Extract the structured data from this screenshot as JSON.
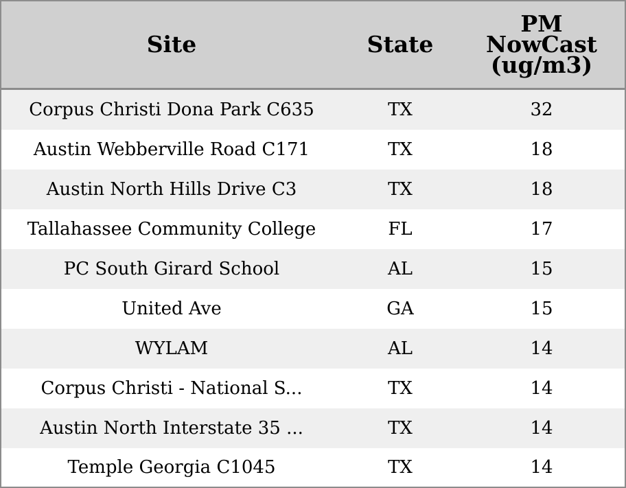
{
  "chart_data": {
    "type": "table",
    "columns": [
      "Site",
      "State",
      "PM NowCast (ug/m3)"
    ],
    "header_lines": {
      "site": [
        "Site"
      ],
      "state": [
        "State"
      ],
      "pm": [
        "PM",
        "NowCast",
        "(ug/m3)"
      ]
    },
    "rows": [
      {
        "site": "Corpus Christi Dona Park C635",
        "state": "TX",
        "pm": 32
      },
      {
        "site": "Austin Webberville Road C171",
        "state": "TX",
        "pm": 18
      },
      {
        "site": "Austin North Hills Drive C3",
        "state": "TX",
        "pm": 18
      },
      {
        "site": "Tallahassee Community College",
        "state": "FL",
        "pm": 17
      },
      {
        "site": "PC South Girard School",
        "state": "AL",
        "pm": 15
      },
      {
        "site": "United Ave",
        "state": "GA",
        "pm": 15
      },
      {
        "site": "WYLAM",
        "state": "AL",
        "pm": 14
      },
      {
        "site": "Corpus Christi - National S...",
        "state": "TX",
        "pm": 14
      },
      {
        "site": "Austin North Interstate 35 ...",
        "state": "TX",
        "pm": 14
      },
      {
        "site": "Temple Georgia C1045",
        "state": "TX",
        "pm": 14
      }
    ]
  },
  "colors": {
    "header_bg": "#d0d0d0",
    "row_alt_bg": "#efefef",
    "row_bg": "#ffffff",
    "border": "#8c8c8c"
  }
}
